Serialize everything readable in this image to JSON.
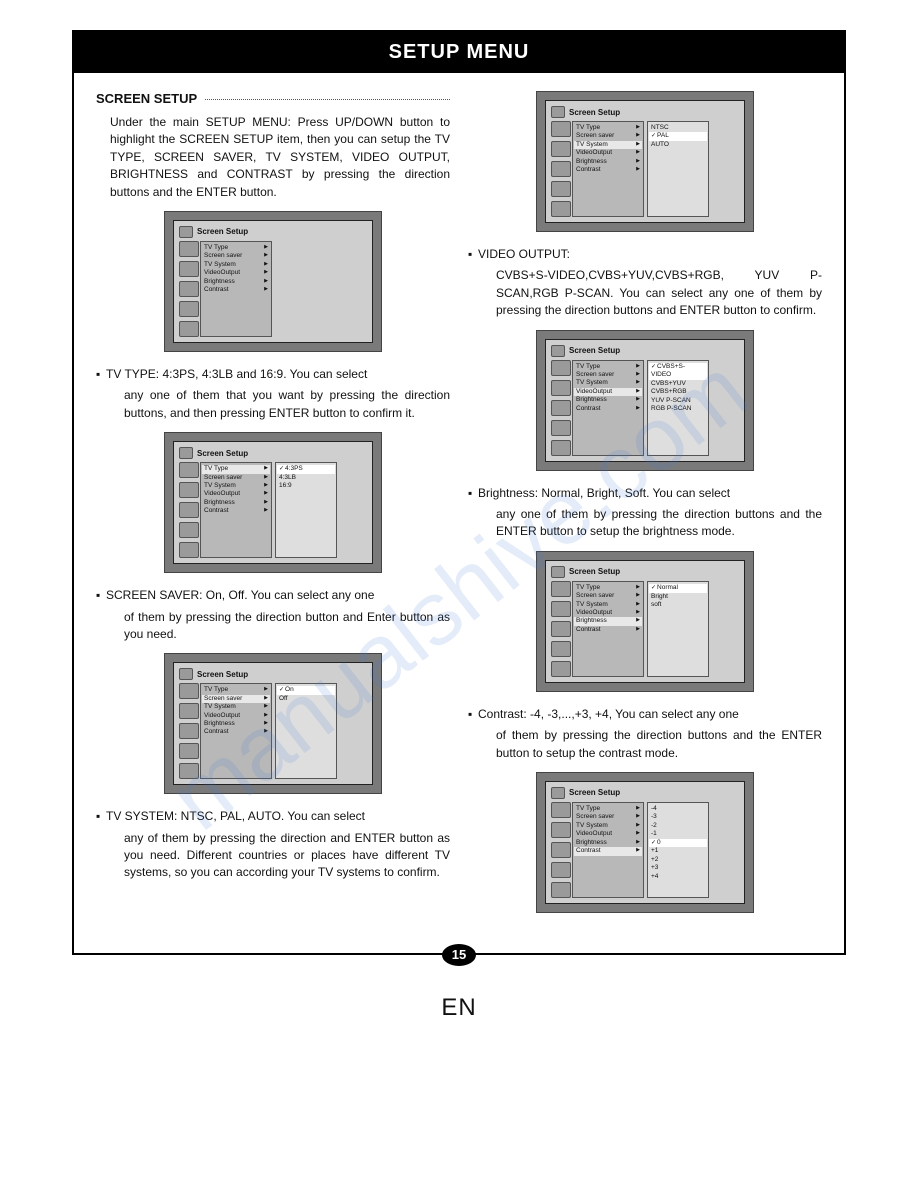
{
  "header": {
    "title": "SETUP MENU"
  },
  "pagenum": "15",
  "lang": "EN",
  "watermark": "manualshive.com",
  "left": {
    "section": "SCREEN SETUP",
    "intro": "Under the main SETUP MENU:\nPress UP/DOWN button to highlight the SCREEN SETUP item, then you can setup the TV TYPE, SCREEN SAVER, TV SYSTEM, VIDEO OUTPUT, BRIGHTNESS and CONTRAST by pressing the direction buttons and the ENTER button.",
    "screen1": {
      "title": "Screen Setup",
      "menu": [
        "TV Type",
        "Screen saver",
        "TV System",
        "VideoOutput",
        "Brightness",
        "Contrast"
      ],
      "highlighted": -1,
      "sub": null
    },
    "tvtype": {
      "lead": "TV TYPE: 4:3PS, 4:3LB and 16:9. You can select",
      "rest": "any one of them that you want by pressing the direction buttons, and then pressing ENTER button to confirm it."
    },
    "screen2": {
      "title": "Screen Setup",
      "menu": [
        "TV Type",
        "Screen saver",
        "TV System",
        "VideoOutput",
        "Brightness",
        "Contrast"
      ],
      "highlighted": 0,
      "sub": [
        "4:3PS",
        "4:3LB",
        "16:9"
      ],
      "checked": 0
    },
    "saver": {
      "lead": "SCREEN SAVER: On, Off. You can select any one",
      "rest": "of them by pressing the direction button and Enter button as you need."
    },
    "screen3": {
      "title": "Screen Setup",
      "menu": [
        "TV Type",
        "Screen saver",
        "TV System",
        "VideoOutput",
        "Brightness",
        "Contrast"
      ],
      "highlighted": 1,
      "sub": [
        "On",
        "Off"
      ],
      "checked": 0
    },
    "tvsys": {
      "lead": "TV SYSTEM: NTSC, PAL, AUTO. You can select",
      "rest": "any of them by pressing the direction and ENTER button as you need. Different countries or places have different TV systems, so you can according your TV systems to confirm."
    }
  },
  "right": {
    "screen4": {
      "title": "Screen Setup",
      "menu": [
        "TV Type",
        "Screen saver",
        "TV System",
        "VideoOutput",
        "Brightness",
        "Contrast"
      ],
      "highlighted": 2,
      "sub": [
        "NTSC",
        "PAL",
        "AUTO"
      ],
      "checked": 1
    },
    "video": {
      "lead": "VIDEO OUTPUT:",
      "rest": "CVBS+S-VIDEO,CVBS+YUV,CVBS+RGB, YUV P-SCAN,RGB P-SCAN.\nYou can select any one of them by pressing the direction buttons and ENTER button to confirm."
    },
    "screen5": {
      "title": "Screen Setup",
      "menu": [
        "TV Type",
        "Screen saver",
        "TV System",
        "VideoOutput",
        "Brightness",
        "Contrast"
      ],
      "highlighted": 3,
      "sub": [
        "CVBS+S-VIDEO",
        "CVBS+YUV",
        "CVBS+RGB",
        "YUV P-SCAN",
        "RGB P-SCAN"
      ],
      "checked": 0
    },
    "bright": {
      "lead": "Brightness: Normal, Bright, Soft. You can select",
      "rest": "any one of them by pressing the direction buttons and the ENTER button to setup the brightness mode."
    },
    "screen6": {
      "title": "Screen Setup",
      "menu": [
        "TV Type",
        "Screen saver",
        "TV System",
        "VideoOutput",
        "Brightness",
        "Contrast"
      ],
      "highlighted": 4,
      "sub": [
        "Normal",
        "Bright",
        "soft"
      ],
      "checked": 0
    },
    "contrast": {
      "lead": "Contrast: -4, -3,...,+3, +4, You can select any one",
      "rest": "of them by pressing the direction buttons and the ENTER button to  setup the contrast mode."
    },
    "screen7": {
      "title": "Screen Setup",
      "menu": [
        "TV Type",
        "Screen saver",
        "TV System",
        "VideoOutput",
        "Brightness",
        "Contrast"
      ],
      "highlighted": 5,
      "sub": [
        "-4",
        "-3",
        "-2",
        "-1",
        "0",
        "+1",
        "+2",
        "+3",
        "+4"
      ],
      "checked": 4
    }
  }
}
